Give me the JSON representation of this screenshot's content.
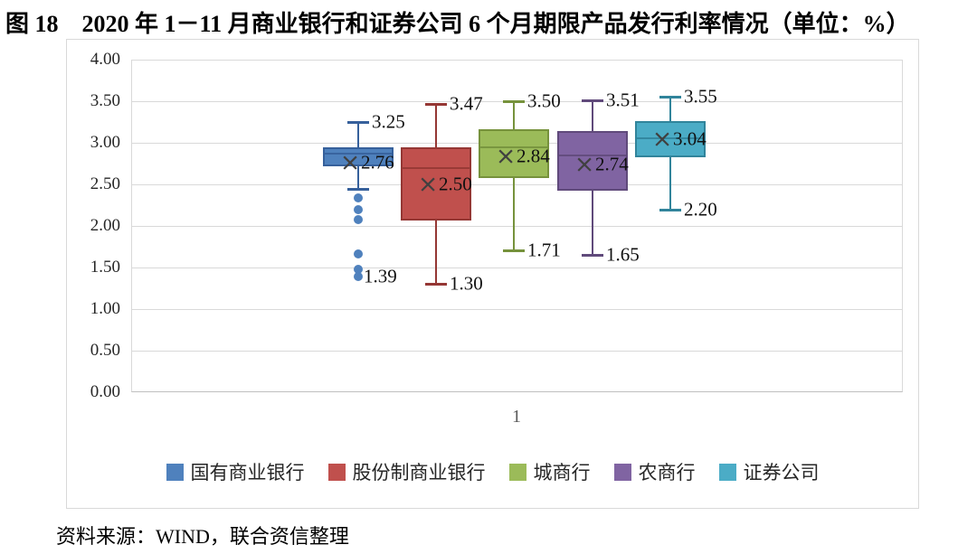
{
  "page": {
    "title": "图 18　2020 年 1－11 月商业银行和证券公司 6 个月期限产品发行利率情况（单位：%）",
    "source_note": "资料来源：WIND，联合资信整理"
  },
  "chart_data": {
    "type": "boxplot",
    "title": "2020 年 1－11 月商业银行和证券公司 6 个月期限产品发行利率情况",
    "unit": "%",
    "x_categories": [
      "1"
    ],
    "ylim": [
      0,
      4
    ],
    "y_tick_values": [
      4.0,
      3.5,
      3.0,
      2.5,
      2.0,
      1.5,
      1.0,
      0.5,
      0.0
    ],
    "y_tick_labels": [
      "4.00",
      "3.50",
      "3.00",
      "2.50",
      "2.00",
      "1.50",
      "1.00",
      "0.50",
      "0.00"
    ],
    "grid": true,
    "legend_position": "bottom",
    "mean_marker": "×",
    "series": [
      {
        "name": "国有商业银行",
        "fill": "#4F81BD",
        "stroke": "#36609B",
        "stats": {
          "whisker_low": 2.45,
          "q1": 2.72,
          "median": 2.87,
          "q3": 2.95,
          "whisker_high": 3.25,
          "mean": 2.76
        },
        "outliers": [
          2.34,
          2.2,
          2.08,
          1.66,
          1.48,
          1.39
        ],
        "labels": {
          "high": "3.25",
          "mean": "2.76",
          "low": "1.39"
        },
        "low_label_anchor": "outlier"
      },
      {
        "name": "股份制商业银行",
        "fill": "#C0504D",
        "stroke": "#953734",
        "stats": {
          "whisker_low": 1.3,
          "q1": 2.07,
          "median": 2.7,
          "q3": 2.95,
          "whisker_high": 3.47,
          "mean": 2.5
        },
        "outliers": [],
        "labels": {
          "high": "3.47",
          "mean": "2.50",
          "low": "1.30"
        },
        "low_label_anchor": "whisker"
      },
      {
        "name": "城商行",
        "fill": "#9BBB59",
        "stroke": "#76923C",
        "stats": {
          "whisker_low": 1.71,
          "q1": 2.58,
          "median": 2.95,
          "q3": 3.16,
          "whisker_high": 3.5,
          "mean": 2.84
        },
        "outliers": [],
        "labels": {
          "high": "3.50",
          "mean": "2.84",
          "low": "1.71"
        },
        "low_label_anchor": "whisker"
      },
      {
        "name": "农商行",
        "fill": "#8064A2",
        "stroke": "#604A7B",
        "stats": {
          "whisker_low": 1.65,
          "q1": 2.42,
          "median": 2.85,
          "q3": 3.14,
          "whisker_high": 3.51,
          "mean": 2.74
        },
        "outliers": [],
        "labels": {
          "high": "3.51",
          "mean": "2.74",
          "low": "1.65"
        },
        "low_label_anchor": "whisker"
      },
      {
        "name": "证券公司",
        "fill": "#4BACC6",
        "stroke": "#31849B",
        "stats": {
          "whisker_low": 2.2,
          "q1": 2.83,
          "median": 3.05,
          "q3": 3.26,
          "whisker_high": 3.55,
          "mean": 3.04
        },
        "outliers": [],
        "labels": {
          "high": "3.55",
          "mean": "3.04",
          "low": "2.20"
        },
        "low_label_anchor": "whisker"
      }
    ]
  }
}
